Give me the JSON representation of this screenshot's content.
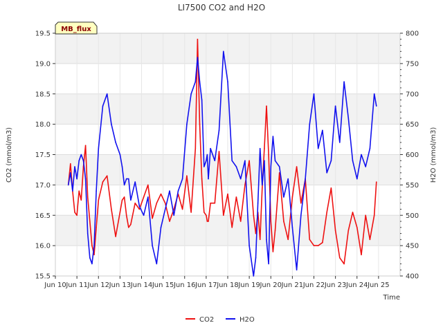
{
  "chart_data": {
    "type": "line",
    "title": "LI7500 CO2 and H2O",
    "xlabel": "Time",
    "ylabel_left": "CO2 (mmol/m3)",
    "ylabel_right": "H2O (mmol/m3)",
    "badge": "MB_flux",
    "x_range": [
      0,
      16
    ],
    "x_ticks": [
      {
        "x": 0,
        "label": "Jun 10"
      },
      {
        "x": 1,
        "label": "Jun 11"
      },
      {
        "x": 2,
        "label": "Jun 12"
      },
      {
        "x": 3,
        "label": "Jun 13"
      },
      {
        "x": 4,
        "label": "Jun 14"
      },
      {
        "x": 5,
        "label": "Jun 15"
      },
      {
        "x": 6,
        "label": "Jun 16"
      },
      {
        "x": 7,
        "label": "Jun 17"
      },
      {
        "x": 8,
        "label": "Jun 18"
      },
      {
        "x": 9,
        "label": "Jun 19"
      },
      {
        "x": 10,
        "label": "Jun 20"
      },
      {
        "x": 11,
        "label": "Jun 21"
      },
      {
        "x": 12,
        "label": "Jun 22"
      },
      {
        "x": 13,
        "label": "Jun 23"
      },
      {
        "x": 14,
        "label": "Jun 24"
      },
      {
        "x": 15,
        "label": "Jun 25"
      }
    ],
    "ylim_left": [
      15.5,
      19.5
    ],
    "ylim_right": [
      400,
      800
    ],
    "yticks_left": [
      "15.5",
      "16.0",
      "16.5",
      "17.0",
      "17.5",
      "18.0",
      "18.5",
      "19.0",
      "19.5"
    ],
    "yticks_right": [
      "400",
      "450",
      "500",
      "550",
      "600",
      "650",
      "700",
      "750",
      "800"
    ],
    "legend_position": "bottom-center",
    "series": [
      {
        "name": "CO2",
        "axis": "left",
        "color": "#ee1111",
        "x": [
          0.6,
          0.7,
          0.8,
          0.9,
          1.0,
          1.1,
          1.2,
          1.3,
          1.4,
          1.5,
          1.6,
          1.7,
          1.8,
          1.9,
          2.0,
          2.2,
          2.4,
          2.6,
          2.8,
          3.0,
          3.1,
          3.2,
          3.3,
          3.4,
          3.5,
          3.7,
          3.9,
          4.1,
          4.3,
          4.5,
          4.7,
          4.9,
          5.1,
          5.3,
          5.5,
          5.7,
          5.9,
          6.1,
          6.3,
          6.5,
          6.6,
          6.7,
          6.8,
          6.9,
          7.0,
          7.05,
          7.1,
          7.2,
          7.4,
          7.6,
          7.8,
          8.0,
          8.2,
          8.4,
          8.6,
          8.8,
          9.0,
          9.2,
          9.3,
          9.4,
          9.5,
          9.6,
          9.7,
          9.8,
          9.9,
          10.0,
          10.1,
          10.2,
          10.4,
          10.6,
          10.8,
          11.0,
          11.2,
          11.4,
          11.6,
          11.8,
          12.0,
          12.2,
          12.4,
          12.6,
          12.8,
          13.0,
          13.2,
          13.4,
          13.6,
          13.8,
          14.0,
          14.2,
          14.4,
          14.6,
          14.8,
          14.9
        ],
        "values": [
          17.0,
          17.35,
          16.9,
          16.55,
          16.5,
          16.9,
          16.75,
          17.3,
          17.65,
          16.8,
          16.4,
          16.0,
          15.85,
          16.3,
          16.75,
          17.05,
          17.15,
          16.6,
          16.15,
          16.55,
          16.75,
          16.8,
          16.5,
          16.3,
          16.35,
          16.7,
          16.6,
          16.8,
          17.0,
          16.45,
          16.7,
          16.85,
          16.7,
          16.4,
          16.6,
          16.85,
          16.6,
          17.15,
          16.55,
          17.6,
          19.4,
          18.0,
          17.1,
          16.55,
          16.5,
          16.4,
          16.4,
          16.7,
          16.7,
          17.55,
          16.5,
          16.85,
          16.3,
          16.8,
          16.4,
          17.0,
          17.4,
          16.5,
          16.2,
          16.55,
          16.1,
          16.95,
          17.6,
          18.3,
          17.5,
          16.4,
          15.9,
          16.25,
          17.2,
          16.4,
          16.1,
          16.8,
          17.3,
          16.7,
          17.1,
          16.1,
          16.0,
          16.0,
          16.05,
          16.55,
          16.95,
          16.25,
          15.8,
          15.7,
          16.25,
          16.55,
          16.3,
          15.85,
          16.5,
          16.1,
          16.5,
          17.05
        ]
      },
      {
        "name": "H2O",
        "axis": "right",
        "color": "#1111ee",
        "x": [
          0.6,
          0.7,
          0.8,
          0.9,
          1.0,
          1.1,
          1.2,
          1.3,
          1.4,
          1.5,
          1.6,
          1.7,
          1.8,
          1.9,
          2.0,
          2.2,
          2.4,
          2.6,
          2.8,
          3.0,
          3.1,
          3.2,
          3.3,
          3.4,
          3.5,
          3.7,
          3.9,
          4.1,
          4.3,
          4.5,
          4.7,
          4.9,
          5.1,
          5.3,
          5.5,
          5.7,
          5.9,
          6.1,
          6.3,
          6.5,
          6.6,
          6.7,
          6.8,
          6.9,
          7.0,
          7.05,
          7.1,
          7.2,
          7.4,
          7.6,
          7.8,
          8.0,
          8.2,
          8.4,
          8.6,
          8.8,
          9.0,
          9.2,
          9.3,
          9.4,
          9.5,
          9.6,
          9.7,
          9.8,
          9.9,
          10.0,
          10.1,
          10.2,
          10.4,
          10.6,
          10.8,
          11.0,
          11.2,
          11.4,
          11.6,
          11.8,
          12.0,
          12.2,
          12.4,
          12.6,
          12.8,
          13.0,
          13.2,
          13.4,
          13.6,
          13.8,
          14.0,
          14.2,
          14.4,
          14.6,
          14.8,
          14.9
        ],
        "values": [
          550,
          570,
          540,
          580,
          560,
          590,
          600,
          590,
          560,
          470,
          430,
          420,
          450,
          540,
          610,
          680,
          700,
          650,
          620,
          600,
          580,
          550,
          560,
          560,
          525,
          555,
          515,
          500,
          530,
          450,
          420,
          480,
          510,
          540,
          500,
          540,
          560,
          650,
          700,
          720,
          760,
          720,
          690,
          580,
          590,
          600,
          560,
          610,
          590,
          640,
          770,
          720,
          590,
          580,
          560,
          590,
          450,
          400,
          430,
          520,
          610,
          550,
          590,
          460,
          420,
          580,
          630,
          590,
          580,
          530,
          560,
          480,
          410,
          500,
          560,
          650,
          700,
          610,
          640,
          570,
          590,
          680,
          620,
          720,
          660,
          590,
          560,
          600,
          580,
          610,
          700,
          680
        ]
      }
    ]
  }
}
